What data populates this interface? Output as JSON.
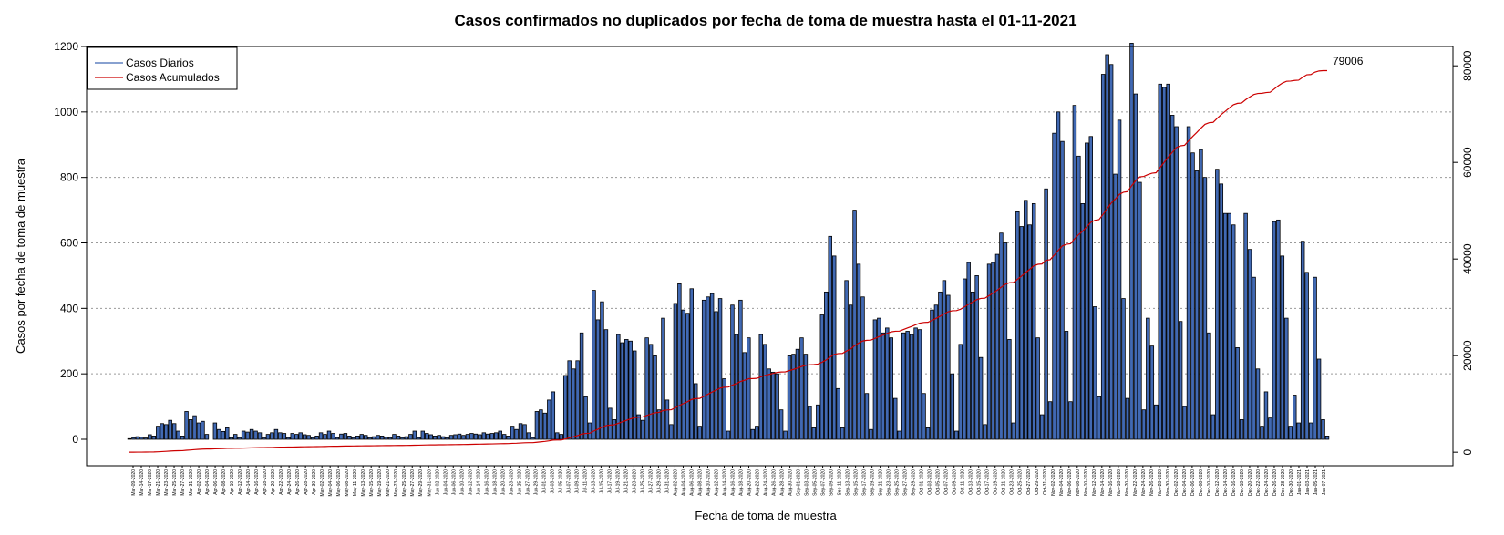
{
  "chart_data": {
    "type": "bar",
    "title": "Casos confirmados no duplicados por fecha de toma de muestra hasta el 01-11-2021",
    "xlabel": "Fecha de toma de muestra",
    "ylabel": "Casos por fecha de toma de muestra",
    "ylim": [
      0,
      1200
    ],
    "y_ticks": [
      0,
      200,
      400,
      600,
      800,
      1000,
      1200
    ],
    "y2lim": [
      -2800,
      84000
    ],
    "y2_ticks": [
      0,
      20000,
      40000,
      60000,
      80000
    ],
    "grid": true,
    "legend_position": "top-left",
    "colors": {
      "bars": "#4169b3",
      "line": "#cc0000"
    },
    "cumulative_end_label": "79006",
    "cumulative_final": 79006,
    "series": [
      {
        "name": "Casos Diarios",
        "type": "bar"
      },
      {
        "name": "Casos Acumulados",
        "type": "line",
        "axis": "right"
      }
    ],
    "x_tick_labels": [
      "Mar-09-2020",
      "Mar-14-2020",
      "Mar-17-2020",
      "Mar-21-2020",
      "Mar-23-2020",
      "Mar-25-2020",
      "Mar-27-2020",
      "Mar-31-2020",
      "Apr-02-2020",
      "Apr-04-2020",
      "Apr-06-2020",
      "Apr-08-2020",
      "Apr-10-2020",
      "Apr-12-2020",
      "Apr-14-2020",
      "Apr-16-2020",
      "Apr-18-2020",
      "Apr-20-2020",
      "Apr-22-2020",
      "Apr-24-2020",
      "Apr-26-2020",
      "Apr-28-2020",
      "Apr-30-2020",
      "May-02-2020",
      "May-04-2020",
      "May-06-2020",
      "May-08-2020",
      "May-11-2020",
      "May-13-2020",
      "May-15-2020",
      "May-19-2020",
      "May-21-2020",
      "May-23-2020",
      "May-25-2020",
      "May-27-2020",
      "May-29-2020",
      "May-31-2020",
      "Jun-02-2020",
      "Jun-04-2020",
      "Jun-06-2020",
      "Jun-10-2020",
      "Jun-12-2020",
      "Jun-14-2020",
      "Jun-16-2020",
      "Jun-18-2020",
      "Jun-20-2020",
      "Jun-23-2020",
      "Jun-25-2020",
      "Jun-27-2020",
      "Jun-29-2020",
      "Jul-01-2020",
      "Jul-03-2020",
      "Jul-05-2020",
      "Jul-07-2020",
      "Jul-09-2020",
      "Jul-11-2020",
      "Jul-13-2020",
      "Jul-15-2020",
      "Jul-17-2020",
      "Jul-19-2020",
      "Jul-21-2020",
      "Jul-23-2020",
      "Jul-25-2020",
      "Jul-27-2020",
      "Jul-29-2020",
      "Jul-31-2020",
      "Aug-02-2020",
      "Aug-04-2020",
      "Aug-06-2020",
      "Aug-08-2020",
      "Aug-10-2020",
      "Aug-12-2020",
      "Aug-14-2020",
      "Aug-16-2020",
      "Aug-18-2020",
      "Aug-20-2020",
      "Aug-22-2020",
      "Aug-24-2020",
      "Aug-26-2020",
      "Aug-28-2020",
      "Aug-30-2020",
      "Sep-01-2020",
      "Sep-03-2020",
      "Sep-05-2020",
      "Sep-07-2020",
      "Sep-09-2020",
      "Sep-11-2020",
      "Sep-13-2020",
      "Sep-15-2020",
      "Sep-17-2020",
      "Sep-19-2020",
      "Sep-21-2020",
      "Sep-23-2020",
      "Sep-25-2020",
      "Sep-27-2020",
      "Sep-29-2020",
      "Oct-01-2020",
      "Oct-03-2020",
      "Oct-05-2020",
      "Oct-07-2020",
      "Oct-09-2020",
      "Oct-11-2020",
      "Oct-13-2020",
      "Oct-15-2020",
      "Oct-17-2020",
      "Oct-19-2020",
      "Oct-21-2020",
      "Oct-23-2020",
      "Oct-25-2020",
      "Oct-27-2020",
      "Oct-29-2020",
      "Oct-31-2020",
      "Nov-02-2020",
      "Nov-04-2020",
      "Nov-06-2020",
      "Nov-08-2020",
      "Nov-10-2020",
      "Nov-12-2020",
      "Nov-14-2020",
      "Nov-16-2020",
      "Nov-18-2020",
      "Nov-20-2020",
      "Nov-22-2020",
      "Nov-24-2020",
      "Nov-26-2020",
      "Nov-28-2020",
      "Nov-30-2020",
      "Dec-02-2020",
      "Dec-04-2020",
      "Dec-06-2020",
      "Dec-08-2020",
      "Dec-10-2020",
      "Dec-12-2020",
      "Dec-14-2020",
      "Dec-16-2020",
      "Dec-18-2020",
      "Dec-20-2020",
      "Dec-22-2020",
      "Dec-24-2020",
      "Dec-26-2020",
      "Dec-28-2020",
      "Dec-30-2020",
      "Jan-01-2021",
      "Jan-03-2021",
      "Jan-05-2021",
      "Jan-07-2021"
    ],
    "values": [
      2,
      5,
      8,
      6,
      4,
      14,
      10,
      40,
      48,
      45,
      58,
      48,
      25,
      10,
      85,
      60,
      72,
      50,
      55,
      15,
      0,
      50,
      30,
      24,
      35,
      5,
      15,
      5,
      25,
      22,
      30,
      25,
      20,
      5,
      15,
      20,
      30,
      20,
      18,
      5,
      18,
      15,
      20,
      14,
      12,
      5,
      10,
      20,
      15,
      25,
      18,
      5,
      16,
      18,
      10,
      5,
      10,
      15,
      12,
      5,
      8,
      12,
      10,
      6,
      5,
      15,
      10,
      5,
      8,
      15,
      25,
      5,
      25,
      18,
      14,
      10,
      12,
      8,
      5,
      12,
      14,
      16,
      12,
      15,
      18,
      16,
      14,
      20,
      16,
      18,
      20,
      25,
      15,
      10,
      40,
      30,
      48,
      45,
      20,
      5,
      85,
      90,
      80,
      120,
      145,
      20,
      15,
      195,
      240,
      215,
      240,
      325,
      130,
      50,
      455,
      365,
      420,
      335,
      95,
      60,
      320,
      295,
      305,
      300,
      270,
      75,
      58,
      310,
      290,
      255,
      90,
      370,
      120,
      45,
      415,
      475,
      395,
      385,
      460,
      170,
      40,
      425,
      435,
      445,
      390,
      430,
      185,
      25,
      410,
      320,
      425,
      265,
      310,
      30,
      40,
      320,
      290,
      215,
      205,
      200,
      90,
      25,
      255,
      260,
      275,
      310,
      260,
      100,
      35,
      105,
      380,
      450,
      620,
      560,
      155,
      35,
      485,
      410,
      700,
      535,
      435,
      140,
      30,
      365,
      370,
      325,
      340,
      310,
      125,
      25,
      325,
      330,
      320,
      340,
      335,
      140,
      35,
      395,
      410,
      450,
      485,
      440,
      200,
      25,
      290,
      490,
      540,
      450,
      500,
      250,
      45,
      535,
      540,
      565,
      630,
      600,
      305,
      50,
      695,
      650,
      730,
      655,
      720,
      310,
      75,
      765,
      115,
      935,
      1000,
      910,
      330,
      115,
      1020,
      865,
      720,
      905,
      925,
      405,
      130,
      1115,
      1175,
      1145,
      810,
      975,
      430,
      125,
      1210,
      1055,
      785,
      90,
      370,
      285,
      105,
      1085,
      1075,
      1085,
      990,
      955,
      360,
      100,
      955,
      875,
      820,
      885,
      800,
      325,
      75,
      825,
      780,
      690,
      690,
      655,
      280,
      60,
      690,
      580,
      495,
      215,
      40,
      145,
      65,
      665,
      670,
      560,
      370,
      40,
      135,
      50,
      605,
      510,
      50,
      495,
      245,
      60,
      10
    ]
  }
}
